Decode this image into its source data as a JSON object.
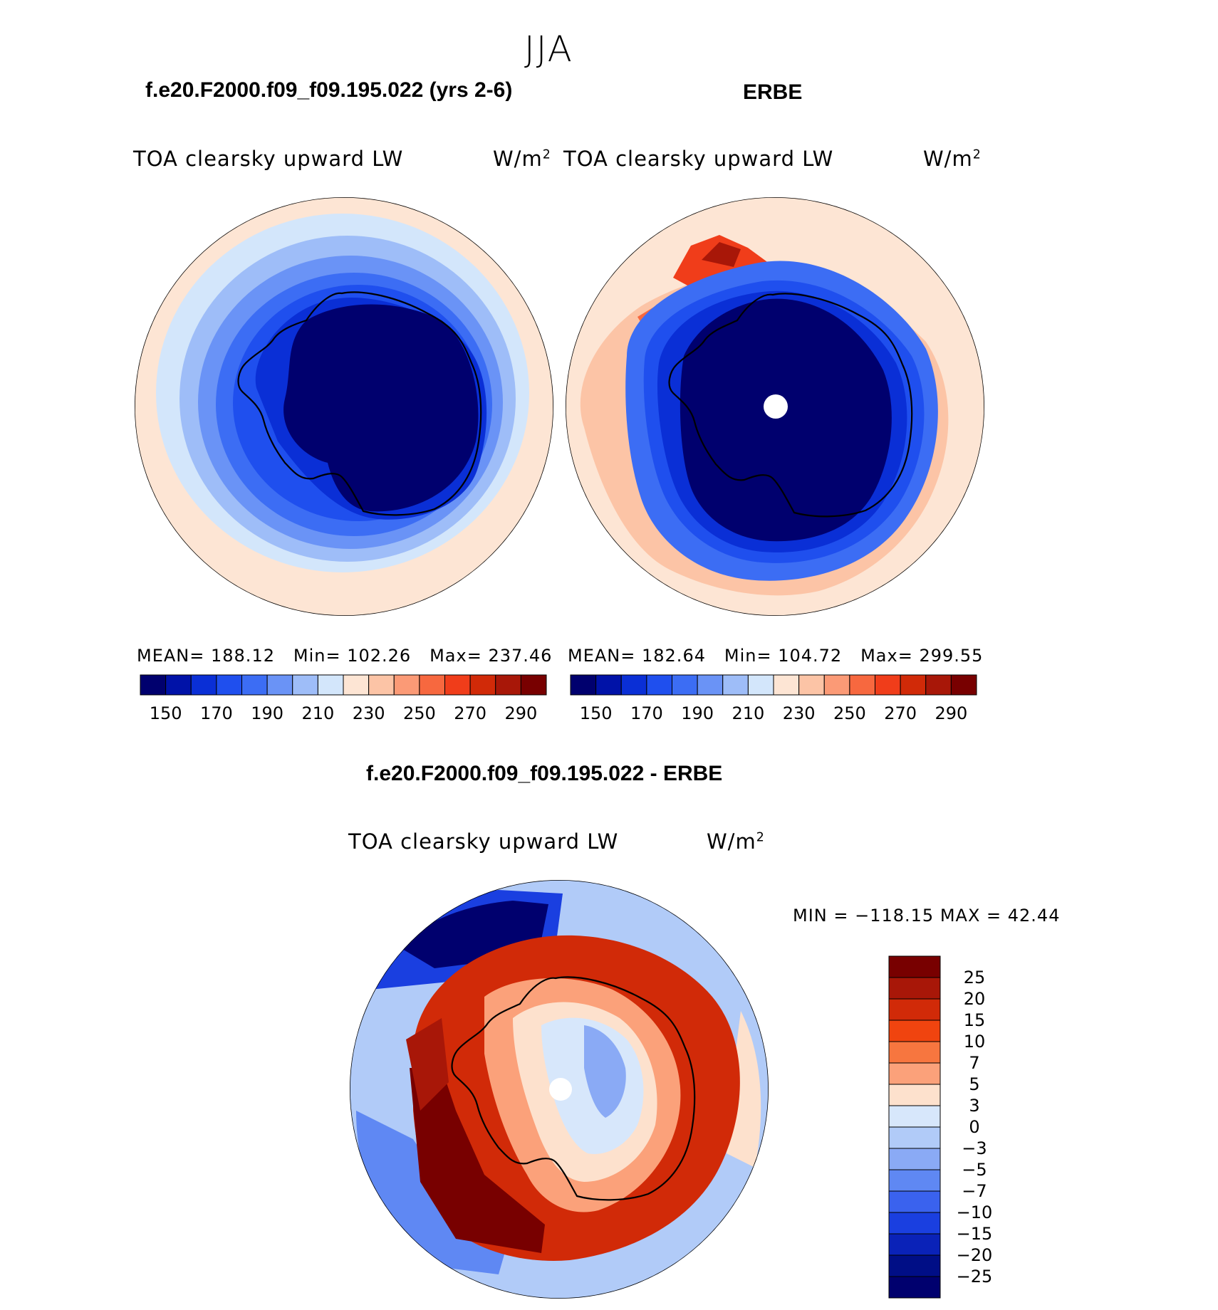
{
  "figure": {
    "season": "JJA",
    "panels": [
      {
        "case_title": "f.e20.F2000.f09_f09.195.022 (yrs 2-6)",
        "left_label": "TOA clearsky upward LW",
        "units": "W/m",
        "units_exp": "2",
        "stats": {
          "mean_label": "MEAN=",
          "mean": "188.12",
          "min_label": "Min=",
          "min": "102.26",
          "max_label": "Max=",
          "max": "237.46"
        }
      },
      {
        "case_title": "ERBE",
        "left_label": "TOA clearsky upward LW",
        "units": "W/m",
        "units_exp": "2",
        "stats": {
          "mean_label": "MEAN=",
          "mean": "182.64",
          "min_label": "Min=",
          "min": "104.72",
          "max_label": "Max=",
          "max": "299.55"
        }
      }
    ],
    "diff_panel": {
      "case_title": "f.e20.F2000.f09_f09.195.022 - ERBE",
      "left_label": "TOA clearsky upward LW",
      "units": "W/m",
      "units_exp": "2",
      "minmax": "MIN = −118.15 MAX =   42.44"
    }
  },
  "chart_data": [
    {
      "type": "heatmap",
      "title": "f.e20.F2000.f09_f09.195.022 (yrs 2-6)",
      "variable": "TOA clearsky upward LW",
      "units": "W/m2",
      "projection": "south polar stereographic",
      "mean": 188.12,
      "min": 102.26,
      "max": 237.46,
      "colorbar_levels": [
        150,
        160,
        170,
        180,
        190,
        200,
        210,
        220,
        230,
        240,
        250,
        260,
        270,
        280,
        290
      ],
      "colorbar_tick_labels": [
        "150",
        "170",
        "190",
        "210",
        "230",
        "250",
        "270",
        "290"
      ],
      "colorbar_colors": [
        "#00006e",
        "#0012a8",
        "#0a2fd6",
        "#1f4fee",
        "#3c6df4",
        "#6a93f6",
        "#9ebdf8",
        "#d3e6fb",
        "#fde5d4",
        "#fcc4a6",
        "#fb9a76",
        "#f7683f",
        "#f03d1a",
        "#d12a08",
        "#a81708",
        "#780000"
      ]
    },
    {
      "type": "heatmap",
      "title": "ERBE",
      "variable": "TOA clearsky upward LW",
      "units": "W/m2",
      "projection": "south polar stereographic",
      "mean": 182.64,
      "min": 104.72,
      "max": 299.55,
      "colorbar_levels": [
        150,
        160,
        170,
        180,
        190,
        200,
        210,
        220,
        230,
        240,
        250,
        260,
        270,
        280,
        290
      ],
      "colorbar_tick_labels": [
        "150",
        "170",
        "190",
        "210",
        "230",
        "250",
        "270",
        "290"
      ],
      "colorbar_colors": [
        "#00006e",
        "#0012a8",
        "#0a2fd6",
        "#1f4fee",
        "#3c6df4",
        "#6a93f6",
        "#9ebdf8",
        "#d3e6fb",
        "#fde5d4",
        "#fcc4a6",
        "#fb9a76",
        "#f7683f",
        "#f03d1a",
        "#d12a08",
        "#a81708",
        "#780000"
      ]
    },
    {
      "type": "heatmap",
      "title": "f.e20.F2000.f09_f09.195.022 - ERBE",
      "variable": "TOA clearsky upward LW",
      "units": "W/m2",
      "projection": "south polar stereographic",
      "min": -118.15,
      "max": 42.44,
      "colorbar_levels": [
        25,
        20,
        15,
        10,
        7,
        5,
        3,
        0,
        -3,
        -5,
        -7,
        -10,
        -15,
        -20,
        -25
      ],
      "colorbar_tick_labels": [
        "25",
        "20",
        "15",
        "10",
        "7",
        "5",
        "3",
        "0",
        "−3",
        "−5",
        "−7",
        "−10",
        "−15",
        "−20",
        "−25"
      ],
      "colorbar_colors": [
        "#780000",
        "#a81708",
        "#d12a08",
        "#f0440f",
        "#f7763f",
        "#fba17a",
        "#fde1cd",
        "#d7e7fb",
        "#b1cbf8",
        "#8aaaf5",
        "#5f88f3",
        "#3a62ee",
        "#1a3fe0",
        "#0a22b8",
        "#000e86",
        "#00006e"
      ]
    }
  ]
}
